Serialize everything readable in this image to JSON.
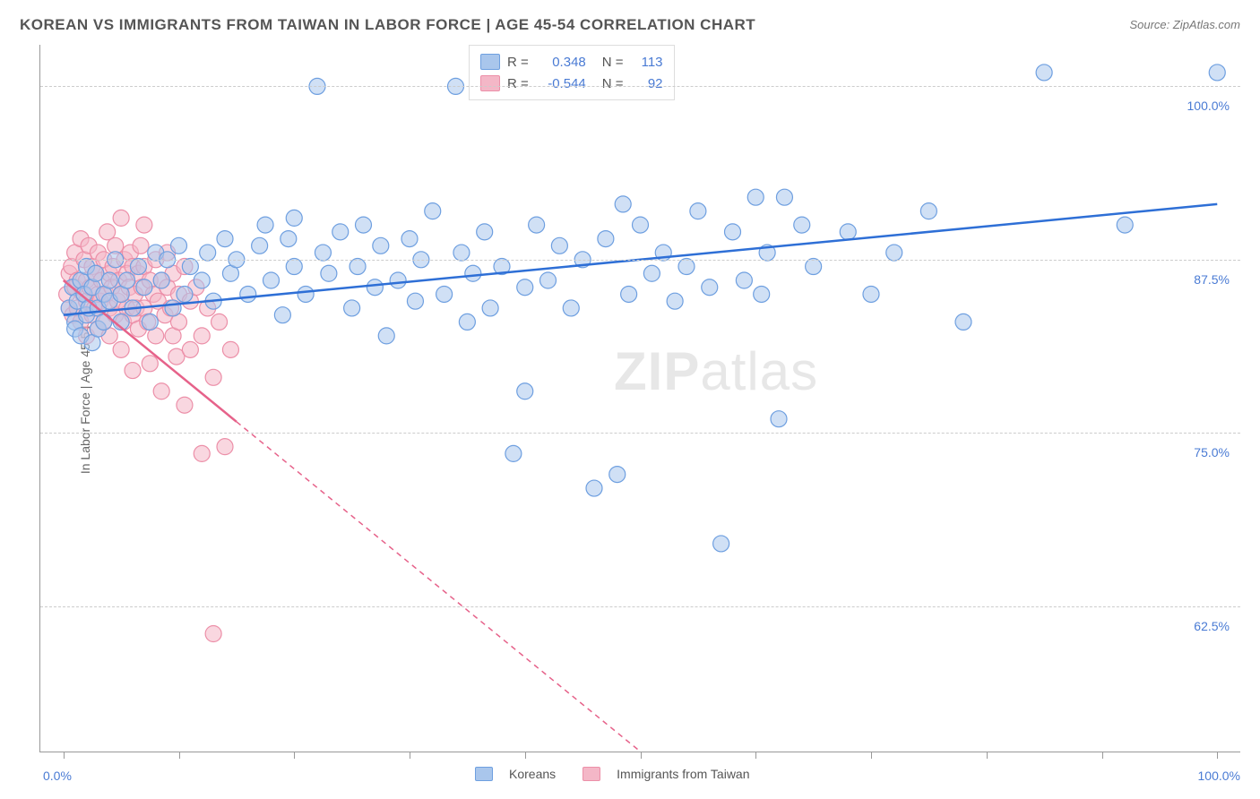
{
  "title": "KOREAN VS IMMIGRANTS FROM TAIWAN IN LABOR FORCE | AGE 45-54 CORRELATION CHART",
  "source_prefix": "Source: ",
  "source_link": "ZipAtlas.com",
  "y_axis_label": "In Labor Force | Age 45-54",
  "watermark_a": "ZIP",
  "watermark_b": "atlas",
  "chart": {
    "type": "scatter",
    "background_color": "#ffffff",
    "grid_color": "#cccccc",
    "axis_color": "#999999",
    "x_range": [
      -2,
      102
    ],
    "y_range": [
      52,
      103
    ],
    "y_ticks": [
      62.5,
      75.0,
      87.5,
      100.0
    ],
    "y_tick_labels": [
      "62.5%",
      "75.0%",
      "87.5%",
      "100.0%"
    ],
    "x_ticks": [
      0,
      10,
      20,
      30,
      40,
      50,
      60,
      70,
      80,
      90,
      100
    ],
    "x_tick_labels_shown": {
      "0": "0.0%",
      "100": "100.0%"
    },
    "marker_radius": 9,
    "marker_opacity": 0.55,
    "line_width_solid": 2.5,
    "line_width_dash": 1.5,
    "dash_pattern": "6,5",
    "series": [
      {
        "name": "Koreans",
        "color_fill": "#a9c6ec",
        "color_stroke": "#6e9fe0",
        "line_color": "#2e6fd6",
        "r": 0.348,
        "n": 113,
        "trend": {
          "x1": 0,
          "y1": 83.5,
          "x2": 100,
          "y2": 91.5
        },
        "solid_until_x": 100,
        "points": [
          [
            0.5,
            84
          ],
          [
            0.8,
            85.5
          ],
          [
            1,
            83
          ],
          [
            1,
            82.5
          ],
          [
            1.2,
            84.5
          ],
          [
            1.5,
            86
          ],
          [
            1.5,
            82
          ],
          [
            1.8,
            85
          ],
          [
            2,
            87
          ],
          [
            2,
            83.5
          ],
          [
            2.2,
            84
          ],
          [
            2.5,
            85.5
          ],
          [
            2.5,
            81.5
          ],
          [
            2.8,
            86.5
          ],
          [
            3,
            84
          ],
          [
            3,
            82.5
          ],
          [
            3.5,
            85
          ],
          [
            3.5,
            83
          ],
          [
            4,
            86
          ],
          [
            4,
            84.5
          ],
          [
            4.5,
            87.5
          ],
          [
            5,
            85
          ],
          [
            5,
            83
          ],
          [
            5.5,
            86
          ],
          [
            6,
            84
          ],
          [
            6.5,
            87
          ],
          [
            7,
            85.5
          ],
          [
            7.5,
            83
          ],
          [
            8,
            88
          ],
          [
            8.5,
            86
          ],
          [
            9,
            87.5
          ],
          [
            9.5,
            84
          ],
          [
            10,
            88.5
          ],
          [
            10.5,
            85
          ],
          [
            11,
            87
          ],
          [
            12,
            86
          ],
          [
            12.5,
            88
          ],
          [
            13,
            84.5
          ],
          [
            14,
            89
          ],
          [
            14.5,
            86.5
          ],
          [
            15,
            87.5
          ],
          [
            16,
            85
          ],
          [
            17,
            88.5
          ],
          [
            17.5,
            90
          ],
          [
            18,
            86
          ],
          [
            19,
            83.5
          ],
          [
            19.5,
            89
          ],
          [
            20,
            87
          ],
          [
            20,
            90.5
          ],
          [
            21,
            85
          ],
          [
            22,
            100
          ],
          [
            22.5,
            88
          ],
          [
            23,
            86.5
          ],
          [
            24,
            89.5
          ],
          [
            25,
            84
          ],
          [
            25.5,
            87
          ],
          [
            26,
            90
          ],
          [
            27,
            85.5
          ],
          [
            27.5,
            88.5
          ],
          [
            28,
            82
          ],
          [
            29,
            86
          ],
          [
            30,
            89
          ],
          [
            30.5,
            84.5
          ],
          [
            31,
            87.5
          ],
          [
            32,
            91
          ],
          [
            33,
            85
          ],
          [
            34,
            100
          ],
          [
            34.5,
            88
          ],
          [
            35,
            83
          ],
          [
            35.5,
            86.5
          ],
          [
            36,
            102
          ],
          [
            36.5,
            89.5
          ],
          [
            37,
            84
          ],
          [
            38,
            87
          ],
          [
            38.5,
            101
          ],
          [
            39,
            73.5
          ],
          [
            40,
            85.5
          ],
          [
            40,
            78
          ],
          [
            41,
            90
          ],
          [
            42,
            86
          ],
          [
            43,
            88.5
          ],
          [
            44,
            84
          ],
          [
            45,
            87.5
          ],
          [
            46,
            71
          ],
          [
            47,
            89
          ],
          [
            48,
            72
          ],
          [
            48.5,
            91.5
          ],
          [
            49,
            85
          ],
          [
            50,
            90
          ],
          [
            51,
            86.5
          ],
          [
            52,
            88
          ],
          [
            53,
            84.5
          ],
          [
            54,
            87
          ],
          [
            55,
            91
          ],
          [
            56,
            85.5
          ],
          [
            57,
            67
          ],
          [
            58,
            89.5
          ],
          [
            59,
            86
          ],
          [
            60,
            92
          ],
          [
            60.5,
            85
          ],
          [
            61,
            88
          ],
          [
            62,
            76
          ],
          [
            62.5,
            92
          ],
          [
            64,
            90
          ],
          [
            65,
            87
          ],
          [
            68,
            89.5
          ],
          [
            70,
            85
          ],
          [
            72,
            88
          ],
          [
            75,
            91
          ],
          [
            78,
            83
          ],
          [
            85,
            101
          ],
          [
            92,
            90
          ],
          [
            100,
            101
          ]
        ]
      },
      {
        "name": "Immigants from Taiwan",
        "label": "Immigrants from Taiwan",
        "color_fill": "#f4b7c7",
        "color_stroke": "#ec8fa8",
        "line_color": "#e6628a",
        "r": -0.544,
        "n": 92,
        "trend": {
          "x1": 0,
          "y1": 86,
          "x2": 50,
          "y2": 52
        },
        "solid_until_x": 15,
        "points": [
          [
            0.3,
            85
          ],
          [
            0.5,
            86.5
          ],
          [
            0.5,
            84
          ],
          [
            0.7,
            87
          ],
          [
            0.8,
            83.5
          ],
          [
            1,
            88
          ],
          [
            1,
            85.5
          ],
          [
            1.2,
            84
          ],
          [
            1.2,
            86
          ],
          [
            1.5,
            89
          ],
          [
            1.5,
            83
          ],
          [
            1.7,
            85
          ],
          [
            1.8,
            87.5
          ],
          [
            2,
            84.5
          ],
          [
            2,
            86
          ],
          [
            2,
            82
          ],
          [
            2.2,
            88.5
          ],
          [
            2.3,
            85.5
          ],
          [
            2.5,
            83.5
          ],
          [
            2.5,
            87
          ],
          [
            2.7,
            84
          ],
          [
            2.8,
            86.5
          ],
          [
            3,
            85
          ],
          [
            3,
            82.5
          ],
          [
            3,
            88
          ],
          [
            3.2,
            84.5
          ],
          [
            3.3,
            86
          ],
          [
            3.5,
            83
          ],
          [
            3.5,
            87.5
          ],
          [
            3.7,
            85
          ],
          [
            3.8,
            89.5
          ],
          [
            4,
            84
          ],
          [
            4,
            86.5
          ],
          [
            4,
            82
          ],
          [
            4.2,
            85.5
          ],
          [
            4.3,
            87
          ],
          [
            4.5,
            83.5
          ],
          [
            4.5,
            88.5
          ],
          [
            4.7,
            84.5
          ],
          [
            4.8,
            86
          ],
          [
            5,
            85
          ],
          [
            5,
            81
          ],
          [
            5,
            90.5
          ],
          [
            5.2,
            83
          ],
          [
            5.3,
            87.5
          ],
          [
            5.5,
            84
          ],
          [
            5.5,
            86.5
          ],
          [
            5.7,
            85.5
          ],
          [
            5.8,
            88
          ],
          [
            6,
            83.5
          ],
          [
            6,
            87
          ],
          [
            6,
            79.5
          ],
          [
            6.2,
            85
          ],
          [
            6.3,
            84
          ],
          [
            6.5,
            86.5
          ],
          [
            6.5,
            82.5
          ],
          [
            6.7,
            88.5
          ],
          [
            6.8,
            85.5
          ],
          [
            7,
            84
          ],
          [
            7,
            87
          ],
          [
            7,
            90
          ],
          [
            7.3,
            83
          ],
          [
            7.5,
            86
          ],
          [
            7.5,
            80
          ],
          [
            7.8,
            85
          ],
          [
            8,
            87.5
          ],
          [
            8,
            82
          ],
          [
            8.2,
            84.5
          ],
          [
            8.5,
            86
          ],
          [
            8.5,
            78
          ],
          [
            8.8,
            83.5
          ],
          [
            9,
            85.5
          ],
          [
            9,
            88
          ],
          [
            9.3,
            84
          ],
          [
            9.5,
            82
          ],
          [
            9.5,
            86.5
          ],
          [
            9.8,
            80.5
          ],
          [
            10,
            85
          ],
          [
            10,
            83
          ],
          [
            10.5,
            87
          ],
          [
            10.5,
            77
          ],
          [
            11,
            84.5
          ],
          [
            11,
            81
          ],
          [
            11.5,
            85.5
          ],
          [
            12,
            73.5
          ],
          [
            12,
            82
          ],
          [
            12.5,
            84
          ],
          [
            13,
            79
          ],
          [
            13.5,
            83
          ],
          [
            14,
            74
          ],
          [
            14.5,
            81
          ],
          [
            13,
            60.5
          ]
        ]
      }
    ]
  },
  "legend_top": {
    "r_label": "R =",
    "n_label": "N =",
    "rows": [
      {
        "swatch_fill": "#a9c6ec",
        "swatch_stroke": "#6e9fe0",
        "r": "0.348",
        "n": "113"
      },
      {
        "swatch_fill": "#f4b7c7",
        "swatch_stroke": "#ec8fa8",
        "r": "-0.544",
        "n": "92"
      }
    ]
  },
  "legend_bottom": {
    "items": [
      {
        "fill": "#a9c6ec",
        "stroke": "#6e9fe0",
        "label": "Koreans"
      },
      {
        "fill": "#f4b7c7",
        "stroke": "#ec8fa8",
        "label": "Immigrants from Taiwan"
      }
    ]
  }
}
